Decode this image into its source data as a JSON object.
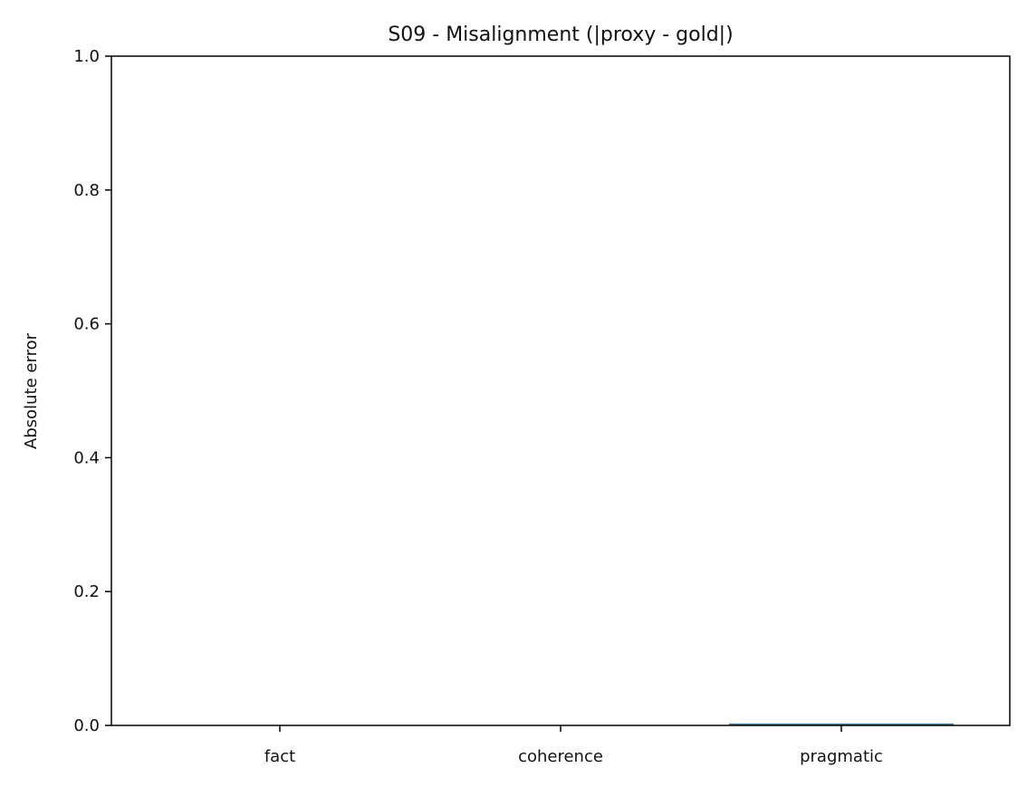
{
  "chart_data": {
    "type": "bar",
    "title": "S09 - Misalignment (|proxy - gold|)",
    "xlabel": "",
    "ylabel": "Absolute error",
    "categories": [
      "fact",
      "coherence",
      "pragmatic"
    ],
    "values": [
      0.0,
      0.0,
      0.003
    ],
    "ylim": [
      0,
      1.0
    ],
    "yticks": [
      0.0,
      0.2,
      0.4,
      0.6,
      0.8,
      1.0
    ],
    "ytick_labels": [
      "0.0",
      "0.2",
      "0.4",
      "0.6",
      "0.8",
      "1.0"
    ],
    "bar_color": "#4a7ea0",
    "grid": false,
    "legend": "none"
  }
}
